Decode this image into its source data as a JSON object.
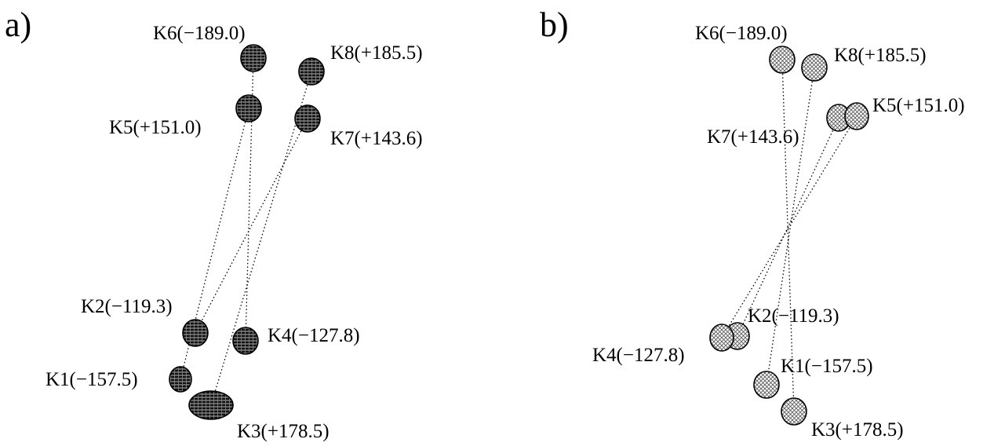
{
  "panels": [
    {
      "label": "a)",
      "nodes": [
        {
          "id": "K6",
          "label": "K6(−189.0)"
        },
        {
          "id": "K8",
          "label": "K8(+185.5)"
        },
        {
          "id": "K5",
          "label": "K5(+151.0)"
        },
        {
          "id": "K7",
          "label": "K7(+143.6)"
        },
        {
          "id": "K2",
          "label": "K2(−119.3)"
        },
        {
          "id": "K4",
          "label": "K4(−127.8)"
        },
        {
          "id": "K1",
          "label": "K1(−157.5)"
        },
        {
          "id": "K3",
          "label": "K3(+178.5)"
        }
      ],
      "links": [
        [
          "K6",
          "K4"
        ],
        [
          "K5",
          "K1"
        ],
        [
          "K8",
          "K3"
        ],
        [
          "K7",
          "K2"
        ]
      ]
    },
    {
      "label": "b)",
      "nodes": [
        {
          "id": "K6",
          "label": "K6(−189.0)"
        },
        {
          "id": "K8",
          "label": "K8(+185.5)"
        },
        {
          "id": "K7",
          "label": "K7(+143.6)"
        },
        {
          "id": "K5",
          "label": "K5(+151.0)"
        },
        {
          "id": "K2",
          "label": "K2(−119.3)"
        },
        {
          "id": "K4",
          "label": "K4(−127.8)"
        },
        {
          "id": "K1",
          "label": "K1(−157.5)"
        },
        {
          "id": "K3",
          "label": "K3(+178.5)"
        }
      ],
      "links": [
        [
          "K6",
          "K3"
        ],
        [
          "K8",
          "K1"
        ],
        [
          "K7",
          "K2"
        ],
        [
          "K5",
          "K4"
        ]
      ]
    }
  ],
  "colors": {
    "sphere_fill": "#111111",
    "sphere_stroke": "#000000",
    "sphere_mesh_light": "#d0d0d0",
    "sphere_mesh_dark": "#6a6a6a",
    "sphere_fill_b": "#ffffff",
    "line": "#000000",
    "text": "#000000"
  }
}
